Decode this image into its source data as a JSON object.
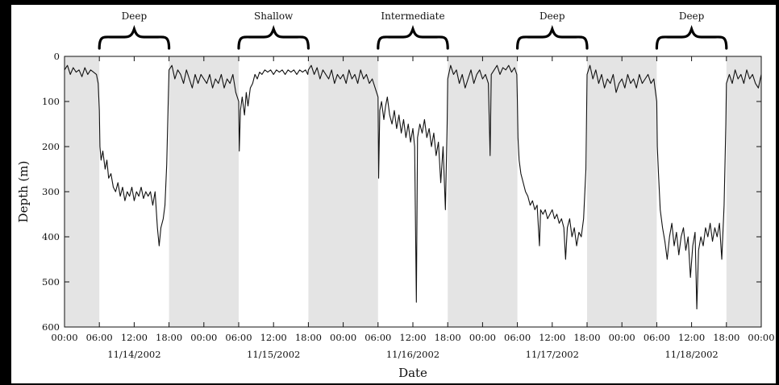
{
  "chart_data": {
    "type": "line",
    "xlabel": "Date",
    "ylabel": "Depth (m)",
    "ylim": [
      0,
      600
    ],
    "y_inverted": true,
    "y_ticks": [
      0,
      100,
      200,
      300,
      400,
      500,
      600
    ],
    "x_range_hours": [
      0,
      120
    ],
    "x_tick_labels": [
      "00:00",
      "06:00",
      "12:00",
      "18:00",
      "00:00",
      "06:00",
      "12:00",
      "18:00",
      "00:00",
      "06:00",
      "12:00",
      "18:00",
      "00:00",
      "06:00",
      "12:00",
      "18:00",
      "00:00",
      "06:00",
      "12:00",
      "18:00",
      "00:00"
    ],
    "x_tick_hours": [
      0,
      6,
      12,
      18,
      24,
      30,
      36,
      42,
      48,
      54,
      60,
      66,
      72,
      78,
      84,
      90,
      96,
      102,
      108,
      114,
      120
    ],
    "date_labels": [
      {
        "hour": 12,
        "label": "11/14/2002"
      },
      {
        "hour": 36,
        "label": "11/15/2002"
      },
      {
        "hour": 60,
        "label": "11/16/2002"
      },
      {
        "hour": 84,
        "label": "11/17/2002"
      },
      {
        "hour": 108,
        "label": "11/18/2002"
      }
    ],
    "night_shading": [
      [
        0,
        6
      ],
      [
        18,
        30
      ],
      [
        42,
        54
      ],
      [
        66,
        78
      ],
      [
        90,
        102
      ],
      [
        114,
        120
      ]
    ],
    "night_color": "#e4e4e4",
    "line_color": "#111111",
    "regimes": [
      {
        "label": "Deep",
        "start_hour": 6,
        "end_hour": 18
      },
      {
        "label": "Shallow",
        "start_hour": 30,
        "end_hour": 42
      },
      {
        "label": "Intermediate",
        "start_hour": 54,
        "end_hour": 66
      },
      {
        "label": "Deep",
        "start_hour": 78,
        "end_hour": 90
      },
      {
        "label": "Deep",
        "start_hour": 102,
        "end_hour": 114
      }
    ],
    "series": [
      {
        "values_hour_depth": [
          [
            0,
            30
          ],
          [
            0.5,
            20
          ],
          [
            1,
            40
          ],
          [
            1.5,
            25
          ],
          [
            2,
            35
          ],
          [
            2.5,
            30
          ],
          [
            3,
            45
          ],
          [
            3.5,
            25
          ],
          [
            4,
            40
          ],
          [
            4.5,
            30
          ],
          [
            5,
            35
          ],
          [
            5.5,
            40
          ],
          [
            5.8,
            60
          ],
          [
            6,
            120
          ],
          [
            6.1,
            200
          ],
          [
            6.3,
            230
          ],
          [
            6.6,
            210
          ],
          [
            7,
            250
          ],
          [
            7.3,
            230
          ],
          [
            7.6,
            270
          ],
          [
            8,
            260
          ],
          [
            8.4,
            290
          ],
          [
            8.8,
            300
          ],
          [
            9.2,
            280
          ],
          [
            9.6,
            310
          ],
          [
            10,
            290
          ],
          [
            10.4,
            320
          ],
          [
            10.8,
            300
          ],
          [
            11.2,
            310
          ],
          [
            11.6,
            290
          ],
          [
            12,
            320
          ],
          [
            12.4,
            300
          ],
          [
            12.8,
            310
          ],
          [
            13.2,
            290
          ],
          [
            13.6,
            315
          ],
          [
            14,
            300
          ],
          [
            14.4,
            310
          ],
          [
            14.8,
            300
          ],
          [
            15.2,
            330
          ],
          [
            15.6,
            300
          ],
          [
            16,
            380
          ],
          [
            16.3,
            420
          ],
          [
            16.6,
            380
          ],
          [
            17,
            360
          ],
          [
            17.3,
            330
          ],
          [
            17.6,
            240
          ],
          [
            17.9,
            80
          ],
          [
            18,
            30
          ],
          [
            18.5,
            20
          ],
          [
            19,
            50
          ],
          [
            19.5,
            30
          ],
          [
            20,
            40
          ],
          [
            20.5,
            60
          ],
          [
            21,
            30
          ],
          [
            21.5,
            50
          ],
          [
            22,
            70
          ],
          [
            22.5,
            40
          ],
          [
            23,
            60
          ],
          [
            23.5,
            40
          ],
          [
            24,
            50
          ],
          [
            24.5,
            60
          ],
          [
            25,
            40
          ],
          [
            25.5,
            70
          ],
          [
            26,
            50
          ],
          [
            26.5,
            60
          ],
          [
            27,
            40
          ],
          [
            27.5,
            70
          ],
          [
            28,
            50
          ],
          [
            28.5,
            60
          ],
          [
            29,
            40
          ],
          [
            29.5,
            80
          ],
          [
            30,
            100
          ],
          [
            30.1,
            210
          ],
          [
            30.3,
            120
          ],
          [
            30.6,
            90
          ],
          [
            31,
            130
          ],
          [
            31.3,
            80
          ],
          [
            31.6,
            110
          ],
          [
            32,
            70
          ],
          [
            32.4,
            60
          ],
          [
            32.8,
            40
          ],
          [
            33.2,
            50
          ],
          [
            33.6,
            35
          ],
          [
            34,
            40
          ],
          [
            34.5,
            30
          ],
          [
            35,
            35
          ],
          [
            35.5,
            30
          ],
          [
            36,
            40
          ],
          [
            36.5,
            30
          ],
          [
            37,
            35
          ],
          [
            37.5,
            30
          ],
          [
            38,
            40
          ],
          [
            38.5,
            30
          ],
          [
            39,
            35
          ],
          [
            39.5,
            30
          ],
          [
            40,
            40
          ],
          [
            40.5,
            30
          ],
          [
            41,
            35
          ],
          [
            41.5,
            30
          ],
          [
            41.9,
            40
          ],
          [
            42,
            30
          ],
          [
            42.5,
            20
          ],
          [
            43,
            40
          ],
          [
            43.5,
            25
          ],
          [
            44,
            50
          ],
          [
            44.5,
            30
          ],
          [
            45,
            40
          ],
          [
            45.5,
            50
          ],
          [
            46,
            30
          ],
          [
            46.5,
            60
          ],
          [
            47,
            40
          ],
          [
            47.5,
            50
          ],
          [
            48,
            40
          ],
          [
            48.5,
            60
          ],
          [
            49,
            30
          ],
          [
            49.5,
            50
          ],
          [
            50,
            40
          ],
          [
            50.5,
            60
          ],
          [
            51,
            30
          ],
          [
            51.5,
            50
          ],
          [
            52,
            40
          ],
          [
            52.5,
            60
          ],
          [
            53,
            50
          ],
          [
            53.5,
            70
          ],
          [
            54,
            90
          ],
          [
            54.1,
            270
          ],
          [
            54.3,
            120
          ],
          [
            54.6,
            100
          ],
          [
            55,
            140
          ],
          [
            55.3,
            110
          ],
          [
            55.6,
            90
          ],
          [
            56,
            130
          ],
          [
            56.4,
            150
          ],
          [
            56.8,
            120
          ],
          [
            57.2,
            160
          ],
          [
            57.6,
            130
          ],
          [
            58,
            170
          ],
          [
            58.4,
            140
          ],
          [
            58.8,
            180
          ],
          [
            59.2,
            150
          ],
          [
            59.6,
            190
          ],
          [
            60,
            160
          ],
          [
            60.3,
            200
          ],
          [
            60.6,
            545
          ],
          [
            60.8,
            180
          ],
          [
            61.2,
            150
          ],
          [
            61.6,
            170
          ],
          [
            62,
            140
          ],
          [
            62.4,
            180
          ],
          [
            62.8,
            160
          ],
          [
            63.2,
            200
          ],
          [
            63.6,
            170
          ],
          [
            64,
            220
          ],
          [
            64.4,
            190
          ],
          [
            64.8,
            280
          ],
          [
            65.2,
            200
          ],
          [
            65.6,
            340
          ],
          [
            65.9,
            150
          ],
          [
            66,
            50
          ],
          [
            66.5,
            20
          ],
          [
            67,
            40
          ],
          [
            67.5,
            30
          ],
          [
            68,
            60
          ],
          [
            68.5,
            40
          ],
          [
            69,
            70
          ],
          [
            69.5,
            50
          ],
          [
            70,
            30
          ],
          [
            70.5,
            60
          ],
          [
            71,
            40
          ],
          [
            71.5,
            30
          ],
          [
            72,
            50
          ],
          [
            72.5,
            40
          ],
          [
            73,
            60
          ],
          [
            73.3,
            220
          ],
          [
            73.5,
            40
          ],
          [
            74,
            30
          ],
          [
            74.5,
            20
          ],
          [
            75,
            40
          ],
          [
            75.5,
            25
          ],
          [
            76,
            30
          ],
          [
            76.5,
            20
          ],
          [
            77,
            35
          ],
          [
            77.5,
            25
          ],
          [
            77.9,
            40
          ],
          [
            78,
            100
          ],
          [
            78.1,
            180
          ],
          [
            78.3,
            230
          ],
          [
            78.6,
            260
          ],
          [
            79,
            280
          ],
          [
            79.4,
            300
          ],
          [
            79.8,
            310
          ],
          [
            80.2,
            330
          ],
          [
            80.6,
            320
          ],
          [
            81,
            340
          ],
          [
            81.4,
            330
          ],
          [
            81.8,
            420
          ],
          [
            82,
            340
          ],
          [
            82.4,
            350
          ],
          [
            82.8,
            340
          ],
          [
            83.2,
            360
          ],
          [
            83.6,
            350
          ],
          [
            84,
            340
          ],
          [
            84.4,
            360
          ],
          [
            84.8,
            350
          ],
          [
            85.2,
            370
          ],
          [
            85.6,
            360
          ],
          [
            86,
            380
          ],
          [
            86.3,
            450
          ],
          [
            86.6,
            380
          ],
          [
            87,
            360
          ],
          [
            87.4,
            400
          ],
          [
            87.8,
            380
          ],
          [
            88.2,
            420
          ],
          [
            88.6,
            390
          ],
          [
            89,
            400
          ],
          [
            89.4,
            360
          ],
          [
            89.8,
            250
          ],
          [
            90,
            40
          ],
          [
            90.5,
            20
          ],
          [
            91,
            50
          ],
          [
            91.5,
            30
          ],
          [
            92,
            60
          ],
          [
            92.5,
            40
          ],
          [
            93,
            70
          ],
          [
            93.5,
            50
          ],
          [
            94,
            60
          ],
          [
            94.5,
            40
          ],
          [
            95,
            80
          ],
          [
            95.5,
            60
          ],
          [
            96,
            50
          ],
          [
            96.5,
            70
          ],
          [
            97,
            40
          ],
          [
            97.5,
            60
          ],
          [
            98,
            50
          ],
          [
            98.5,
            70
          ],
          [
            99,
            40
          ],
          [
            99.5,
            60
          ],
          [
            100,
            50
          ],
          [
            100.5,
            40
          ],
          [
            101,
            60
          ],
          [
            101.5,
            50
          ],
          [
            102,
            100
          ],
          [
            102.1,
            200
          ],
          [
            102.3,
            260
          ],
          [
            102.6,
            340
          ],
          [
            103,
            380
          ],
          [
            103.4,
            410
          ],
          [
            103.8,
            450
          ],
          [
            104.2,
            400
          ],
          [
            104.6,
            370
          ],
          [
            105,
            420
          ],
          [
            105.4,
            390
          ],
          [
            105.8,
            440
          ],
          [
            106.2,
            400
          ],
          [
            106.6,
            380
          ],
          [
            107,
            430
          ],
          [
            107.4,
            400
          ],
          [
            107.8,
            490
          ],
          [
            108.2,
            420
          ],
          [
            108.6,
            390
          ],
          [
            108.9,
            560
          ],
          [
            109.2,
            430
          ],
          [
            109.6,
            400
          ],
          [
            110,
            420
          ],
          [
            110.4,
            380
          ],
          [
            110.8,
            400
          ],
          [
            111.2,
            370
          ],
          [
            111.6,
            410
          ],
          [
            112,
            380
          ],
          [
            112.4,
            400
          ],
          [
            112.8,
            370
          ],
          [
            113.2,
            450
          ],
          [
            113.6,
            330
          ],
          [
            113.9,
            150
          ],
          [
            114,
            60
          ],
          [
            114.5,
            40
          ],
          [
            115,
            60
          ],
          [
            115.5,
            30
          ],
          [
            116,
            50
          ],
          [
            116.5,
            40
          ],
          [
            117,
            60
          ],
          [
            117.5,
            30
          ],
          [
            118,
            50
          ],
          [
            118.5,
            40
          ],
          [
            119,
            60
          ],
          [
            119.5,
            70
          ],
          [
            120,
            40
          ]
        ]
      }
    ]
  }
}
